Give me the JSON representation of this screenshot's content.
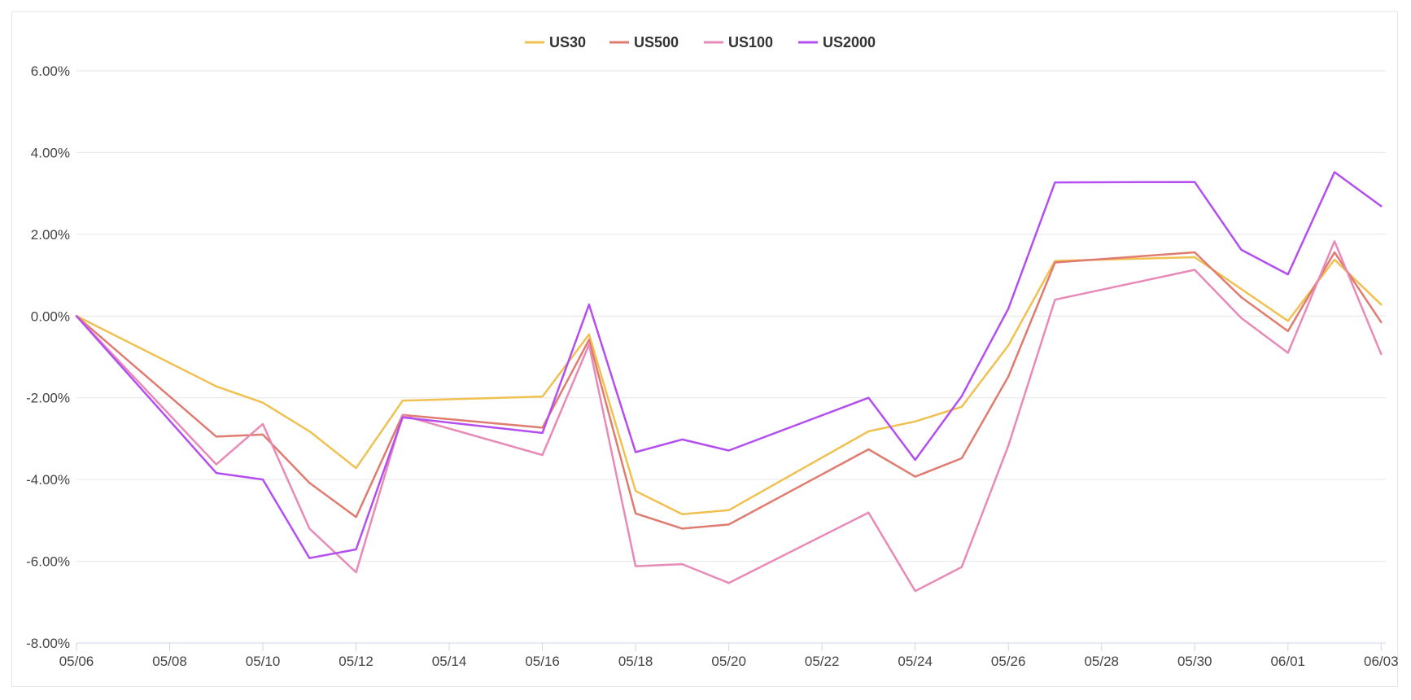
{
  "chart_data": {
    "type": "line",
    "title": "",
    "xlabel": "",
    "ylabel": "",
    "x": [
      "05/06",
      "05/09",
      "05/10",
      "05/11",
      "05/12",
      "05/13",
      "05/16",
      "05/17",
      "05/18",
      "05/19",
      "05/20",
      "05/23",
      "05/24",
      "05/25",
      "05/26",
      "05/27",
      "05/30",
      "05/31",
      "06/01",
      "06/02",
      "06/03"
    ],
    "x_ticks": [
      "05/06",
      "05/08",
      "05/10",
      "05/12",
      "05/14",
      "05/16",
      "05/18",
      "05/20",
      "05/22",
      "05/24",
      "05/26",
      "05/28",
      "05/30",
      "06/01",
      "06/03"
    ],
    "y_ticks": [
      "6.00%",
      "4.00%",
      "2.00%",
      "0.00%",
      "-2.00%",
      "-4.00%",
      "-6.00%",
      "-8.00%"
    ],
    "ylim": [
      -8,
      6
    ],
    "x_range": [
      "05/06",
      "06/03"
    ],
    "grid": true,
    "legend": "top-center",
    "series": [
      {
        "name": "US30",
        "color": "#f0c150",
        "values": [
          0.0,
          -1.72,
          -2.12,
          -2.82,
          -3.72,
          -2.07,
          -1.97,
          -0.45,
          -4.28,
          -4.85,
          -4.75,
          -2.82,
          -2.58,
          -2.22,
          -0.72,
          1.35,
          1.44,
          0.66,
          -0.12,
          1.38,
          0.28
        ]
      },
      {
        "name": "US500",
        "color": "#e07b70",
        "values": [
          0.0,
          -2.95,
          -2.9,
          -4.08,
          -4.92,
          -2.42,
          -2.73,
          -0.58,
          -4.83,
          -5.2,
          -5.1,
          -3.26,
          -3.93,
          -3.48,
          -1.48,
          1.31,
          1.56,
          0.46,
          -0.37,
          1.56,
          -0.15
        ]
      },
      {
        "name": "US100",
        "color": "#e88ab8",
        "values": [
          0.0,
          -3.63,
          -2.64,
          -5.2,
          -6.27,
          -2.43,
          -3.4,
          -0.7,
          -6.12,
          -6.07,
          -6.53,
          -4.81,
          -6.73,
          -6.14,
          -3.17,
          0.4,
          1.13,
          -0.05,
          -0.9,
          1.83,
          -0.93
        ]
      },
      {
        "name": "US2000",
        "color": "#b44ef0",
        "values": [
          0.0,
          -3.84,
          -4.0,
          -5.92,
          -5.71,
          -2.48,
          -2.86,
          0.28,
          -3.33,
          -3.02,
          -3.29,
          -2.0,
          -3.52,
          -1.96,
          0.18,
          3.27,
          3.28,
          1.62,
          1.02,
          3.52,
          2.69
        ]
      }
    ]
  }
}
